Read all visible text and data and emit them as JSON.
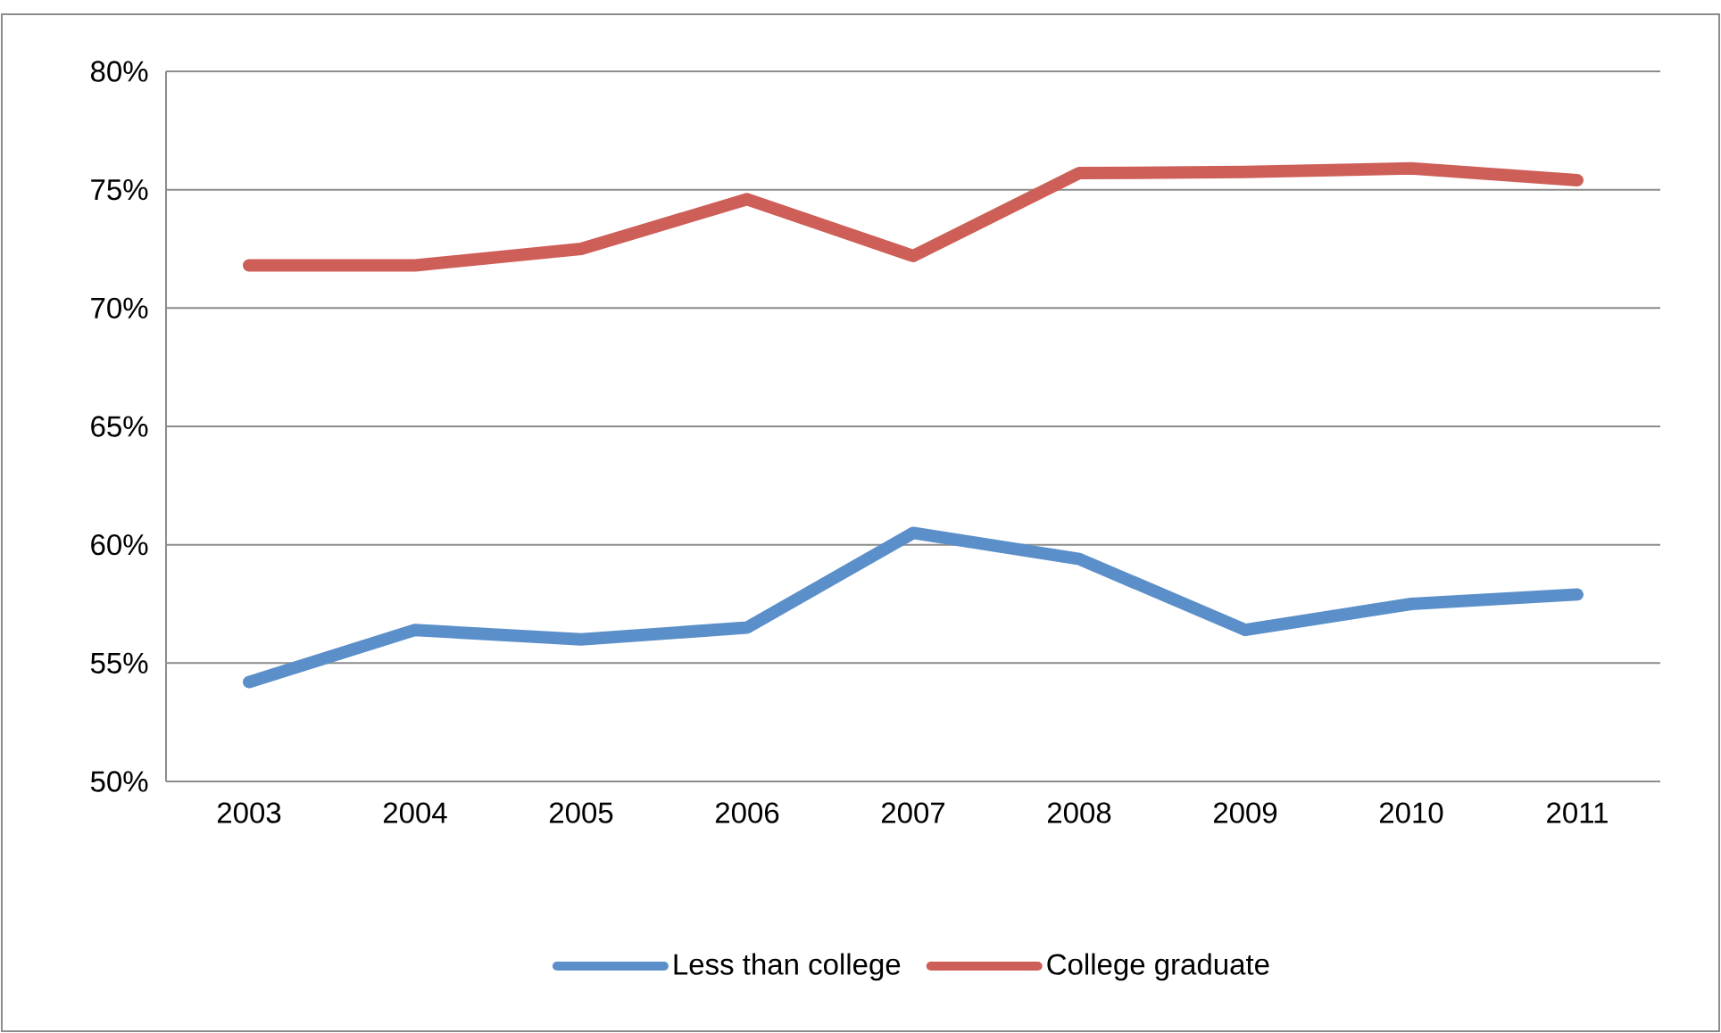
{
  "chart_data": {
    "type": "line",
    "categories": [
      "2003",
      "2004",
      "2005",
      "2006",
      "2007",
      "2008",
      "2009",
      "2010",
      "2011"
    ],
    "series": [
      {
        "name": "Less than college",
        "color": "#5b8fc9",
        "values": [
          54.2,
          56.4,
          56.0,
          56.5,
          60.5,
          59.4,
          56.4,
          57.5,
          57.9
        ]
      },
      {
        "name": "College graduate",
        "color": "#cd5f58",
        "values": [
          71.8,
          71.8,
          72.5,
          74.6,
          72.2,
          75.7,
          75.75,
          75.9,
          75.4
        ]
      }
    ],
    "ylim": [
      50,
      80
    ],
    "yticks": [
      {
        "value": 50,
        "label": "50%"
      },
      {
        "value": 55,
        "label": "55%"
      },
      {
        "value": 60,
        "label": "60%"
      },
      {
        "value": 65,
        "label": "65%"
      },
      {
        "value": 70,
        "label": "70%"
      },
      {
        "value": 75,
        "label": "75%"
      },
      {
        "value": 80,
        "label": "80%"
      }
    ],
    "grid": "y",
    "legend": "bottom",
    "marker": "none",
    "line_style": "solid"
  }
}
